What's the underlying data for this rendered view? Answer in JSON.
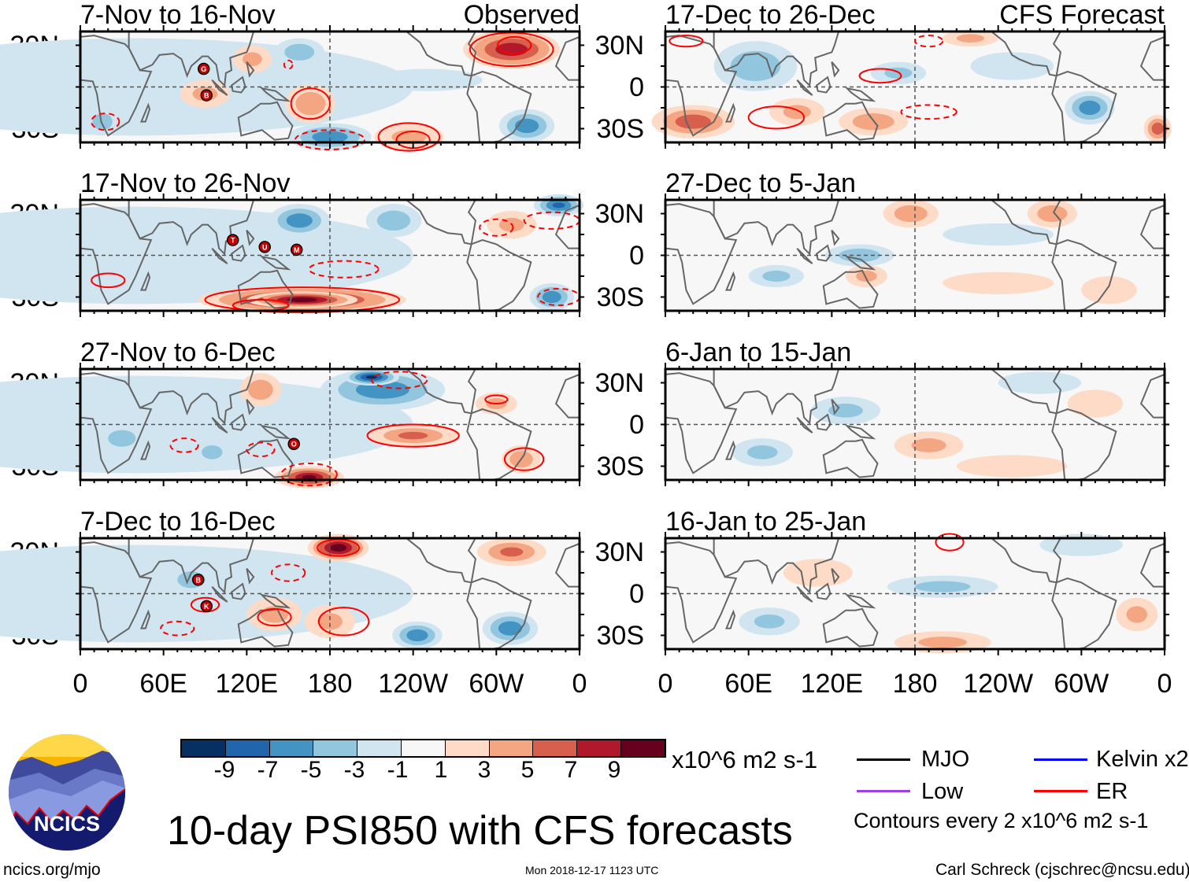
{
  "chart_data": {
    "type": "heatmap",
    "title": "10-day PSI850 with CFS forecasts",
    "variable": "850-hPa streamfunction anomaly",
    "units": "x10^6 m2 s-1",
    "lat_labels": [
      "30N",
      "0",
      "30S"
    ],
    "lon_labels": [
      "0",
      "60E",
      "120E",
      "180",
      "120W",
      "60W",
      "0"
    ],
    "colorbar": {
      "labels": [
        "-9",
        "-7",
        "-5",
        "-3",
        "-1",
        "1",
        "3",
        "5",
        "7",
        "9"
      ],
      "colors": [
        "#053061",
        "#2166ac",
        "#4393c3",
        "#92c5de",
        "#d1e5f0",
        "#f7f7f7",
        "#fddbc7",
        "#f4a582",
        "#d6604d",
        "#b2182b",
        "#67001f"
      ]
    },
    "columns": {
      "left": "Observed",
      "right": "CFS Forecast"
    },
    "panels": [
      {
        "title": "7-Nov to 16-Nov",
        "source": "observed",
        "storms": [
          "G",
          "B"
        ]
      },
      {
        "title": "17-Nov to 26-Nov",
        "source": "observed",
        "storms": [
          "T",
          "U",
          "M"
        ]
      },
      {
        "title": "27-Nov to 6-Dec",
        "source": "observed",
        "storms": [
          "O"
        ]
      },
      {
        "title": "7-Dec to 16-Dec",
        "source": "observed",
        "storms": [
          "B",
          "K"
        ]
      },
      {
        "title": "17-Dec to 26-Dec",
        "source": "forecast",
        "storms": []
      },
      {
        "title": "27-Dec to 5-Jan",
        "source": "forecast",
        "storms": []
      },
      {
        "title": "6-Jan to 15-Jan",
        "source": "forecast",
        "storms": []
      },
      {
        "title": "16-Jan to 25-Jan",
        "source": "forecast",
        "storms": []
      }
    ]
  },
  "legend": {
    "items": [
      {
        "label": "MJO",
        "color": "#000000"
      },
      {
        "label": "Kelvin x2",
        "color": "#0000ff"
      },
      {
        "label": "Low",
        "color": "#a040e0"
      },
      {
        "label": "ER",
        "color": "#ff0000"
      }
    ],
    "contours_note": "Contours every 2 x10^6 m2 s-1"
  },
  "logo": {
    "text": "NCICS"
  },
  "footer": {
    "url": "ncics.org/mjo",
    "timestamp": "Mon 2018-12-17 1123 UTC",
    "credit": "Carl Schreck (cjschrec@ncsu.edu)"
  }
}
